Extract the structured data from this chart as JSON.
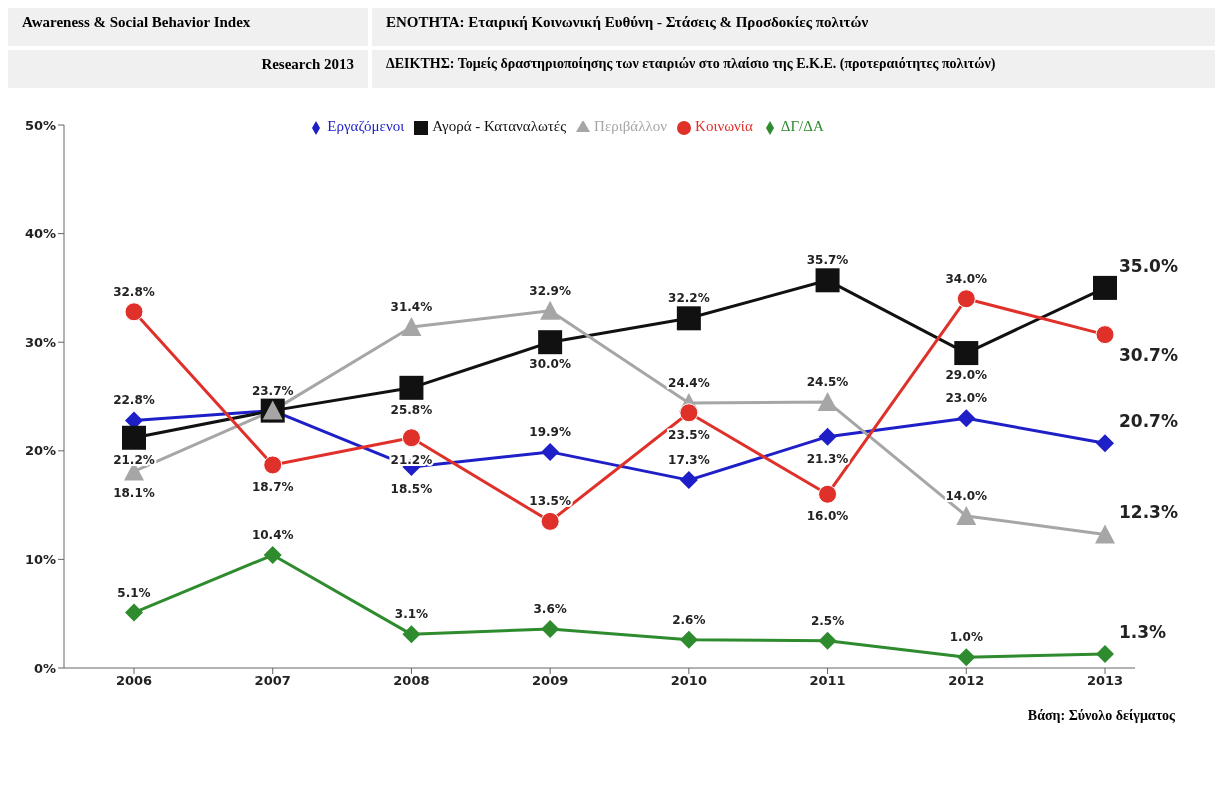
{
  "chart_data": {
    "type": "line",
    "title": "Awareness & Social Behavior Index",
    "subtitle": "Research 2013",
    "annotations": [
      "ΕΝΟΤΗΤΑ: Εταιρική Κοινωνική Ευθύνη - Στάσεις & Προσδοκίες πολιτών",
      "ΔΕΙΚΤΗΣ: Τομείς δραστηριοποίησης των εταιριών στο πλαίσιο της Ε.Κ.Ε. (προτεραιότητες πολιτών)",
      "Βάση: Σύνολο δείγματος"
    ],
    "categories": [
      "2006",
      "2007",
      "2008",
      "2009",
      "2010",
      "2011",
      "2012",
      "2013"
    ],
    "series": [
      {
        "name": "Εργαζόμενοι",
        "color": "#1f1fc8",
        "marker": "diamond",
        "values": [
          22.8,
          23.7,
          18.5,
          19.9,
          17.3,
          21.3,
          23.0,
          20.7
        ],
        "value_labels": [
          "22.8%",
          null,
          "18.5%",
          "19.9%",
          "17.3%",
          "21.3%",
          "23.0%",
          "20.7%"
        ]
      },
      {
        "name": "Αγορά - Καταναλωτές",
        "color": "#111111",
        "marker": "square",
        "values": [
          21.2,
          23.7,
          25.8,
          30.0,
          32.2,
          35.7,
          29.0,
          35.0
        ],
        "value_labels": [
          "21.2%",
          null,
          "25.8%",
          "30.0%",
          "32.2%",
          "35.7%",
          "29.0%",
          "35.0%"
        ]
      },
      {
        "name": "Περιβάλλον",
        "color": "#a6a6a6",
        "marker": "triangle",
        "values": [
          18.1,
          23.7,
          31.4,
          32.9,
          24.4,
          24.5,
          14.0,
          12.3
        ],
        "value_labels": [
          "18.1%",
          "23.7%",
          "31.4%",
          "32.9%",
          "24.4%",
          "24.5%",
          "14.0%",
          "12.3%"
        ]
      },
      {
        "name": "Κοινωνία",
        "color": "#e0302a",
        "marker": "circle",
        "values": [
          32.8,
          18.7,
          21.2,
          13.5,
          23.5,
          16.0,
          34.0,
          30.7
        ],
        "value_labels": [
          "32.8%",
          "18.7%",
          "21.2%",
          "13.5%",
          "23.5%",
          "16.0%",
          "34.0%",
          "30.7%"
        ]
      },
      {
        "name": "ΔΓ/ΔΑ",
        "color": "#2e8b2e",
        "marker": "diamond",
        "values": [
          5.1,
          10.4,
          3.1,
          3.6,
          2.6,
          2.5,
          1.0,
          1.3
        ],
        "value_labels": [
          "5.1%",
          "10.4%",
          "3.1%",
          "3.6%",
          "2.6%",
          "2.5%",
          "1.0%",
          "1.3%"
        ]
      }
    ],
    "ylim": [
      0,
      50
    ],
    "yticks": [
      {
        "value": 0,
        "label": "0%"
      },
      {
        "value": 10,
        "label": "10%"
      },
      {
        "value": 20,
        "label": "20%"
      },
      {
        "value": 30,
        "label": "30%"
      },
      {
        "value": 40,
        "label": "40%"
      },
      {
        "value": 50,
        "label": "50%"
      }
    ],
    "grid": false,
    "legend": "top",
    "line_style": "solid"
  }
}
